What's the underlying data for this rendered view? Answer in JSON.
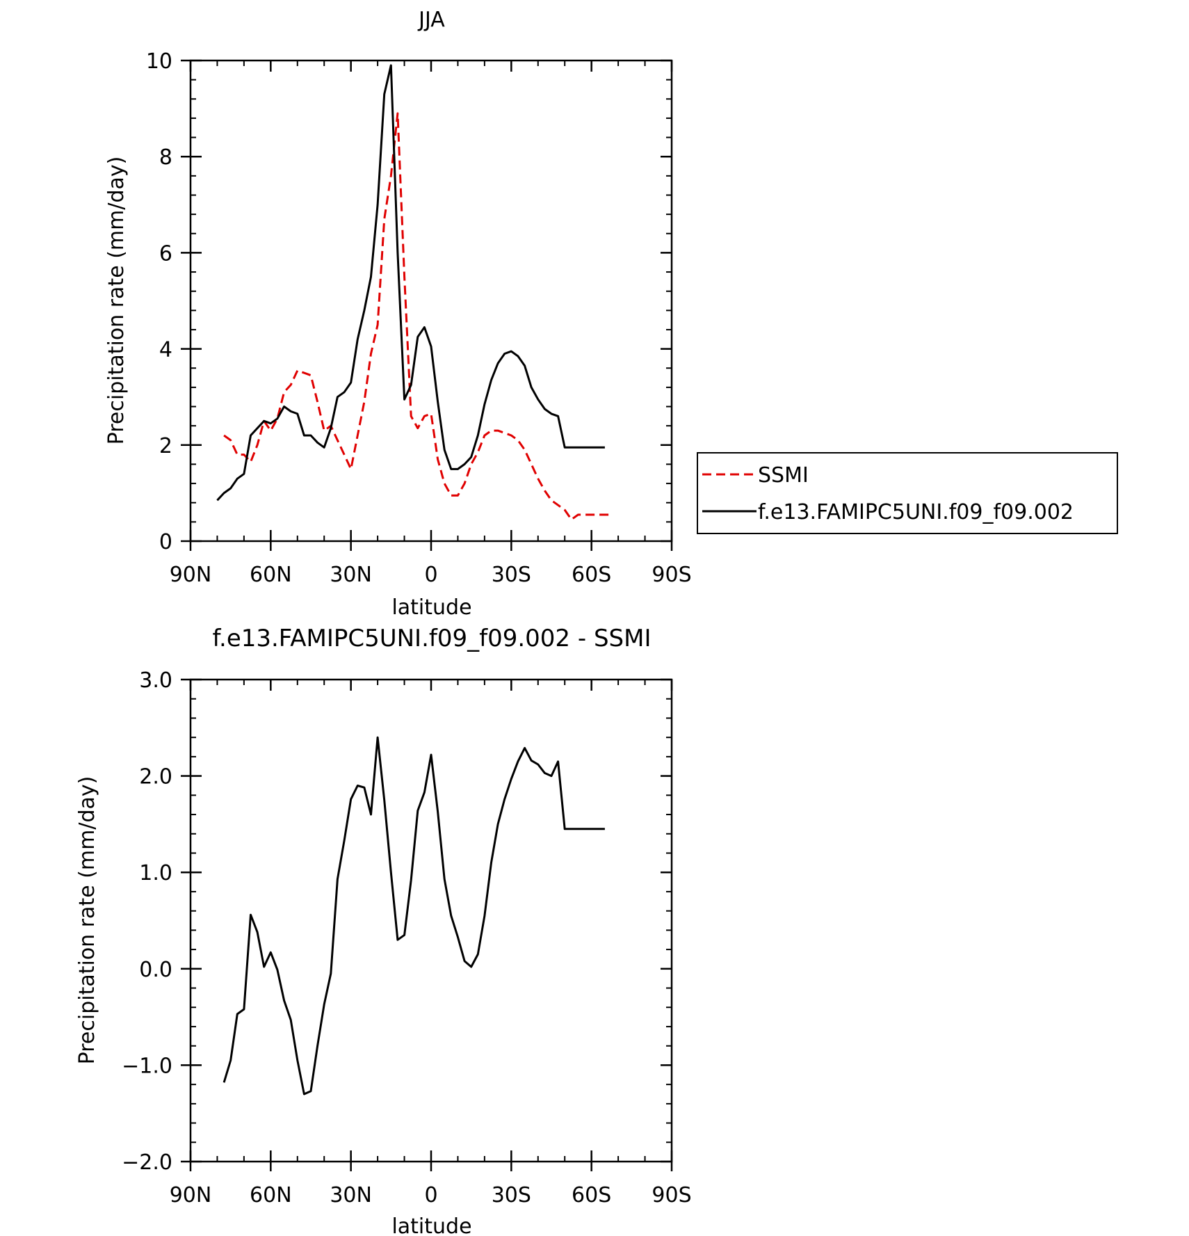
{
  "chart_data": [
    {
      "type": "line",
      "title": "JJA",
      "xlabel": "latitude",
      "ylabel": "Precipitation rate (mm/day)",
      "xlim": [
        90,
        -90
      ],
      "ylim": [
        0,
        10
      ],
      "xticks": [
        90,
        60,
        30,
        0,
        -30,
        -60,
        -90
      ],
      "xticklabels": [
        "90N",
        "60N",
        "30N",
        "0",
        "30S",
        "60S",
        "90S"
      ],
      "yticks": [
        0,
        2,
        4,
        6,
        8,
        10
      ],
      "yticklabels": [
        "0",
        "2",
        "4",
        "6",
        "8",
        "10"
      ],
      "legend": {
        "placement": "right",
        "entries": [
          "SSMI",
          "f.e13.FAMIPC5UNI.f09_f09.002"
        ]
      },
      "series": [
        {
          "name": "SSMI",
          "color": "#e00000",
          "dash": "dashed",
          "x": [
            77.5,
            75,
            72.5,
            70,
            67.5,
            65,
            62.5,
            60,
            57.5,
            55,
            52.5,
            50,
            47.5,
            45,
            42.5,
            40,
            37.5,
            35,
            32.5,
            30,
            27.5,
            25,
            22.5,
            20,
            17.5,
            15,
            12.5,
            10,
            7.5,
            5,
            2.5,
            0,
            -2.5,
            -5,
            -7.5,
            -10,
            -12.5,
            -15,
            -17.5,
            -20,
            -22.5,
            -25,
            -27.5,
            -30,
            -32.5,
            -35,
            -37.5,
            -40,
            -42.5,
            -45,
            -47.5,
            -50,
            -52.5,
            -55,
            -57.5,
            -60,
            -62.5,
            -65,
            -67.5
          ],
          "y": [
            2.2,
            2.1,
            1.8,
            1.8,
            1.65,
            2.0,
            2.5,
            2.3,
            2.55,
            3.1,
            3.25,
            3.55,
            3.5,
            3.45,
            2.9,
            2.3,
            2.4,
            2.1,
            1.8,
            1.5,
            2.2,
            2.9,
            3.9,
            4.5,
            6.7,
            7.6,
            8.9,
            5.5,
            2.6,
            2.35,
            2.6,
            2.65,
            1.7,
            1.2,
            0.95,
            0.95,
            1.2,
            1.6,
            1.85,
            2.2,
            2.3,
            2.3,
            2.25,
            2.2,
            2.1,
            1.9,
            1.6,
            1.3,
            1.05,
            0.85,
            0.75,
            0.65,
            0.45,
            0.55,
            0.55,
            0.55,
            0.55,
            0.55,
            0.55
          ]
        },
        {
          "name": "f.e13.FAMIPC5UNI.f09_f09.002",
          "color": "#000000",
          "dash": "solid",
          "x": [
            80,
            77.5,
            75,
            72.5,
            70,
            67.5,
            65,
            62.5,
            60,
            57.5,
            55,
            52.5,
            50,
            47.5,
            45,
            42.5,
            40,
            37.5,
            35,
            32.5,
            30,
            27.5,
            25,
            22.5,
            20,
            17.5,
            15,
            12.5,
            10,
            7.5,
            5,
            2.5,
            0,
            -2.5,
            -5,
            -7.5,
            -10,
            -12.5,
            -15,
            -17.5,
            -20,
            -22.5,
            -25,
            -27.5,
            -30,
            -32.5,
            -35,
            -37.5,
            -40,
            -42.5,
            -45,
            -47.5,
            -50,
            -52.5,
            -55,
            -57.5,
            -60,
            -62.5,
            -65
          ],
          "y": [
            0.85,
            1.0,
            1.1,
            1.3,
            1.4,
            2.2,
            2.35,
            2.5,
            2.45,
            2.55,
            2.8,
            2.7,
            2.65,
            2.2,
            2.2,
            2.05,
            1.95,
            2.35,
            3.0,
            3.1,
            3.3,
            4.2,
            4.8,
            5.5,
            7.0,
            9.3,
            9.9,
            6.0,
            2.95,
            3.25,
            4.25,
            4.45,
            4.05,
            2.9,
            1.9,
            1.5,
            1.5,
            1.6,
            1.75,
            2.2,
            2.85,
            3.35,
            3.7,
            3.9,
            3.95,
            3.85,
            3.65,
            3.2,
            2.95,
            2.75,
            2.65,
            2.6,
            1.95,
            1.95,
            1.95,
            1.95,
            1.95,
            1.95,
            1.95
          ]
        }
      ]
    },
    {
      "type": "line",
      "title": "f.e13.FAMIPC5UNI.f09_f09.002 - SSMI",
      "xlabel": "latitude",
      "ylabel": "Precipitation rate (mm/day)",
      "xlim": [
        90,
        -90
      ],
      "ylim": [
        -2.0,
        3.0
      ],
      "xticks": [
        90,
        60,
        30,
        0,
        -30,
        -60,
        -90
      ],
      "xticklabels": [
        "90N",
        "60N",
        "30N",
        "0",
        "30S",
        "60S",
        "90S"
      ],
      "yticks": [
        -2.0,
        -1.0,
        0.0,
        1.0,
        2.0,
        3.0
      ],
      "yticklabels": [
        "−2.0",
        "−1.0",
        "0.0",
        "1.0",
        "2.0",
        "3.0"
      ],
      "series": [
        {
          "color": "#000000",
          "dash": "solid",
          "x": [
            77.5,
            75,
            72.5,
            70,
            67.5,
            65,
            62.5,
            60,
            57.5,
            55,
            52.5,
            50,
            47.5,
            45,
            42.5,
            40,
            37.5,
            35,
            32.5,
            30,
            27.5,
            25,
            22.5,
            20,
            17.5,
            15,
            12.5,
            10,
            7.5,
            5,
            2.5,
            0,
            -2.5,
            -5,
            -7.5,
            -10,
            -12.5,
            -15,
            -17.5,
            -20,
            -22.5,
            -25,
            -27.5,
            -30,
            -32.5,
            -35,
            -37.5,
            -40,
            -42.5,
            -45,
            -47.5,
            -50,
            -52.5,
            -55,
            -57.5,
            -60,
            -62.5,
            -65
          ],
          "y": [
            -1.18,
            -0.95,
            -0.47,
            -0.42,
            0.56,
            0.38,
            0.02,
            0.17,
            -0.01,
            -0.33,
            -0.53,
            -0.95,
            -1.3,
            -1.27,
            -0.8,
            -0.37,
            -0.05,
            0.93,
            1.33,
            1.76,
            1.9,
            1.88,
            1.6,
            2.4,
            1.75,
            1.0,
            0.3,
            0.35,
            0.92,
            1.64,
            1.83,
            2.22,
            1.63,
            0.93,
            0.55,
            0.33,
            0.08,
            0.02,
            0.15,
            0.55,
            1.1,
            1.5,
            1.76,
            1.97,
            2.15,
            2.29,
            2.16,
            2.12,
            2.03,
            2.0,
            2.15,
            1.45,
            1.45,
            1.45,
            1.45,
            1.45,
            1.45,
            1.45
          ]
        }
      ]
    }
  ]
}
